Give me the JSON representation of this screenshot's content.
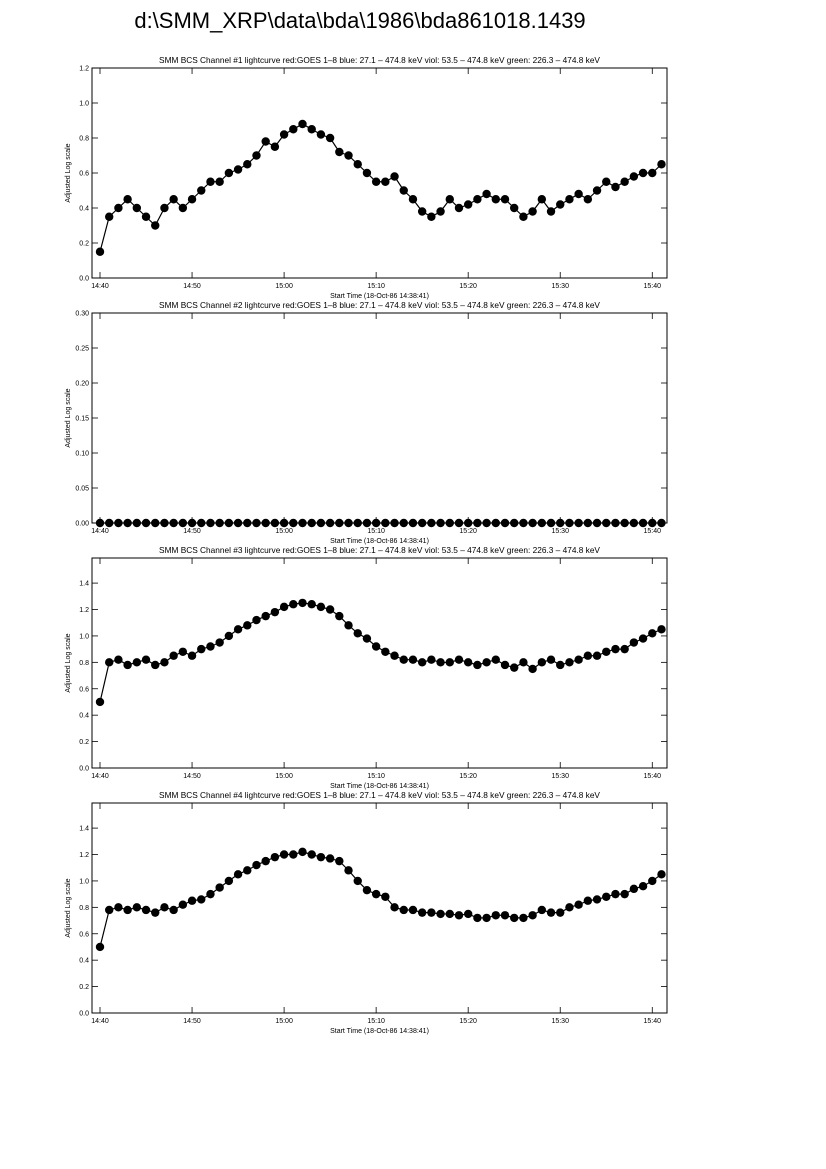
{
  "page_title": "d:\\SMM_XRP\\data\\bda\\1986\\bda861018.1439",
  "chart_data": [
    {
      "type": "line",
      "title": "SMM BCS Channel #1 lightcurve  red:GOES 1–8  blue: 27.1 – 474.8 keV  viol: 53.5 – 474.8 keV  green: 226.3 – 474.8 keV",
      "xlabel": "Start Time (18-Oct-86 14:38:41)",
      "ylabel": "Adjusted Log scale",
      "color": "#000000",
      "xlim": [
        39.13,
        101.6
      ],
      "ylim": [
        0,
        1.2
      ],
      "xticks": [
        {
          "value": 40,
          "label": "14:40"
        },
        {
          "value": 50,
          "label": "14:50"
        },
        {
          "value": 60,
          "label": "15:00"
        },
        {
          "value": 70,
          "label": "15:10"
        },
        {
          "value": 80,
          "label": "15:20"
        },
        {
          "value": 90,
          "label": "15:30"
        },
        {
          "value": 100,
          "label": "15:40"
        }
      ],
      "yticks": [
        {
          "value": 0,
          "label": "0.0"
        },
        0.2,
        0.4,
        0.6,
        0.8,
        {
          "value": 1,
          "label": "1.0"
        },
        1.2
      ],
      "x": [
        40,
        41,
        42,
        43,
        44,
        45,
        46,
        47,
        48,
        49,
        50,
        51,
        52,
        53,
        54,
        55,
        56,
        57,
        58,
        59,
        60,
        61,
        62,
        63,
        64,
        65,
        66,
        67,
        68,
        69,
        70,
        71,
        72,
        73,
        74,
        75,
        76,
        77,
        78,
        79,
        80,
        81,
        82,
        83,
        84,
        85,
        86,
        87,
        88,
        89,
        90,
        91,
        92,
        93,
        94,
        95,
        96,
        97,
        98,
        99,
        100,
        101
      ],
      "values": [
        0.15,
        0.35,
        0.4,
        0.45,
        0.4,
        0.35,
        0.3,
        0.4,
        0.45,
        0.4,
        0.45,
        0.5,
        0.55,
        0.55,
        0.6,
        0.62,
        0.65,
        0.7,
        0.78,
        0.75,
        0.82,
        0.85,
        0.88,
        0.85,
        0.82,
        0.8,
        0.72,
        0.7,
        0.65,
        0.6,
        0.55,
        0.55,
        0.58,
        0.5,
        0.45,
        0.38,
        0.35,
        0.38,
        0.45,
        0.4,
        0.42,
        0.45,
        0.48,
        0.45,
        0.45,
        0.4,
        0.35,
        0.38,
        0.45,
        0.38,
        0.42,
        0.45,
        0.48,
        0.45,
        0.5,
        0.55,
        0.52,
        0.55,
        0.58,
        0.6,
        0.6,
        0.65
      ]
    },
    {
      "type": "line",
      "title": "SMM BCS Channel #2 lightcurve  red:GOES 1–8  blue: 27.1 – 474.8 keV  viol: 53.5 – 474.8 keV  green: 226.3 – 474.8 keV",
      "xlabel": "Start Time (18-Oct-86 14:38:41)",
      "ylabel": "Adjusted Log scale",
      "color": "#000000",
      "xlim": [
        39.13,
        101.6
      ],
      "ylim": [
        0,
        0.3
      ],
      "xticks": [
        {
          "value": 40,
          "label": "14:40"
        },
        {
          "value": 50,
          "label": "14:50"
        },
        {
          "value": 60,
          "label": "15:00"
        },
        {
          "value": 70,
          "label": "15:10"
        },
        {
          "value": 80,
          "label": "15:20"
        },
        {
          "value": 90,
          "label": "15:30"
        },
        {
          "value": 100,
          "label": "15:40"
        }
      ],
      "yticks": [
        {
          "value": 0,
          "label": "0.00"
        },
        0.05,
        {
          "value": 0.1,
          "label": "0.10"
        },
        0.15,
        {
          "value": 0.2,
          "label": "0.20"
        },
        0.25,
        {
          "value": 0.3,
          "label": "0.30"
        }
      ],
      "x": [
        40,
        41,
        42,
        43,
        44,
        45,
        46,
        47,
        48,
        49,
        50,
        51,
        52,
        53,
        54,
        55,
        56,
        57,
        58,
        59,
        60,
        61,
        62,
        63,
        64,
        65,
        66,
        67,
        68,
        69,
        70,
        71,
        72,
        73,
        74,
        75,
        76,
        77,
        78,
        79,
        80,
        81,
        82,
        83,
        84,
        85,
        86,
        87,
        88,
        89,
        90,
        91,
        92,
        93,
        94,
        95,
        96,
        97,
        98,
        99,
        100,
        101
      ],
      "values": [
        0,
        0,
        0,
        0,
        0,
        0,
        0,
        0,
        0,
        0,
        0,
        0,
        0,
        0,
        0,
        0,
        0,
        0,
        0,
        0,
        0,
        0,
        0,
        0,
        0,
        0,
        0,
        0,
        0,
        0,
        0,
        0,
        0,
        0,
        0,
        0,
        0,
        0,
        0,
        0,
        0,
        0,
        0,
        0,
        0,
        0,
        0,
        0,
        0,
        0,
        0,
        0,
        0,
        0,
        0,
        0,
        0,
        0,
        0,
        0,
        0,
        0
      ]
    },
    {
      "type": "line",
      "title": "SMM BCS Channel #3 lightcurve  red:GOES 1–8  blue: 27.1 – 474.8 keV  viol: 53.5 – 474.8 keV  green: 226.3 – 474.8 keV",
      "xlabel": "Start Time (18-Oct-86 14:38:41)",
      "ylabel": "Adjusted Log scale",
      "color": "#000000",
      "xlim": [
        39.13,
        101.6
      ],
      "ylim": [
        0,
        1.59
      ],
      "xticks": [
        {
          "value": 40,
          "label": "14:40"
        },
        {
          "value": 50,
          "label": "14:50"
        },
        {
          "value": 60,
          "label": "15:00"
        },
        {
          "value": 70,
          "label": "15:10"
        },
        {
          "value": 80,
          "label": "15:20"
        },
        {
          "value": 90,
          "label": "15:30"
        },
        {
          "value": 100,
          "label": "15:40"
        }
      ],
      "yticks": [
        {
          "value": 0,
          "label": "0.0"
        },
        0.2,
        0.4,
        0.6,
        0.8,
        {
          "value": 1,
          "label": "1.0"
        },
        1.2,
        1.4
      ],
      "x": [
        40,
        41,
        42,
        43,
        44,
        45,
        46,
        47,
        48,
        49,
        50,
        51,
        52,
        53,
        54,
        55,
        56,
        57,
        58,
        59,
        60,
        61,
        62,
        63,
        64,
        65,
        66,
        67,
        68,
        69,
        70,
        71,
        72,
        73,
        74,
        75,
        76,
        77,
        78,
        79,
        80,
        81,
        82,
        83,
        84,
        85,
        86,
        87,
        88,
        89,
        90,
        91,
        92,
        93,
        94,
        95,
        96,
        97,
        98,
        99,
        100,
        101
      ],
      "values": [
        0.5,
        0.8,
        0.82,
        0.78,
        0.8,
        0.82,
        0.78,
        0.8,
        0.85,
        0.88,
        0.85,
        0.9,
        0.92,
        0.95,
        1.0,
        1.05,
        1.08,
        1.12,
        1.15,
        1.18,
        1.22,
        1.24,
        1.25,
        1.24,
        1.22,
        1.2,
        1.15,
        1.08,
        1.02,
        0.98,
        0.92,
        0.88,
        0.85,
        0.82,
        0.82,
        0.8,
        0.82,
        0.8,
        0.8,
        0.82,
        0.8,
        0.78,
        0.8,
        0.82,
        0.78,
        0.76,
        0.8,
        0.75,
        0.8,
        0.82,
        0.78,
        0.8,
        0.82,
        0.85,
        0.85,
        0.88,
        0.9,
        0.9,
        0.95,
        0.98,
        1.02,
        1.05
      ]
    },
    {
      "type": "line",
      "title": "SMM BCS Channel #4 lightcurve  red:GOES 1–8  blue: 27.1 – 474.8 keV  viol: 53.5 – 474.8 keV  green: 226.3 – 474.8 keV",
      "xlabel": "Start Time (18-Oct-86 14:38:41)",
      "ylabel": "Adjusted Log scale",
      "color": "#000000",
      "xlim": [
        39.13,
        101.6
      ],
      "ylim": [
        0,
        1.59
      ],
      "xticks": [
        {
          "value": 40,
          "label": "14:40"
        },
        {
          "value": 50,
          "label": "14:50"
        },
        {
          "value": 60,
          "label": "15:00"
        },
        {
          "value": 70,
          "label": "15:10"
        },
        {
          "value": 80,
          "label": "15:20"
        },
        {
          "value": 90,
          "label": "15:30"
        },
        {
          "value": 100,
          "label": "15:40"
        }
      ],
      "yticks": [
        {
          "value": 0,
          "label": "0.0"
        },
        0.2,
        0.4,
        0.6,
        0.8,
        {
          "value": 1,
          "label": "1.0"
        },
        1.2,
        1.4
      ],
      "x": [
        40,
        41,
        42,
        43,
        44,
        45,
        46,
        47,
        48,
        49,
        50,
        51,
        52,
        53,
        54,
        55,
        56,
        57,
        58,
        59,
        60,
        61,
        62,
        63,
        64,
        65,
        66,
        67,
        68,
        69,
        70,
        71,
        72,
        73,
        74,
        75,
        76,
        77,
        78,
        79,
        80,
        81,
        82,
        83,
        84,
        85,
        86,
        87,
        88,
        89,
        90,
        91,
        92,
        93,
        94,
        95,
        96,
        97,
        98,
        99,
        100,
        101
      ],
      "values": [
        0.5,
        0.78,
        0.8,
        0.78,
        0.8,
        0.78,
        0.76,
        0.8,
        0.78,
        0.82,
        0.85,
        0.86,
        0.9,
        0.95,
        1.0,
        1.05,
        1.08,
        1.12,
        1.15,
        1.18,
        1.2,
        1.2,
        1.22,
        1.2,
        1.18,
        1.17,
        1.15,
        1.08,
        1.0,
        0.93,
        0.9,
        0.88,
        0.8,
        0.78,
        0.78,
        0.76,
        0.76,
        0.75,
        0.75,
        0.74,
        0.75,
        0.72,
        0.72,
        0.74,
        0.74,
        0.72,
        0.72,
        0.74,
        0.78,
        0.76,
        0.76,
        0.8,
        0.82,
        0.85,
        0.86,
        0.88,
        0.9,
        0.9,
        0.94,
        0.96,
        1.0,
        1.05
      ]
    }
  ]
}
